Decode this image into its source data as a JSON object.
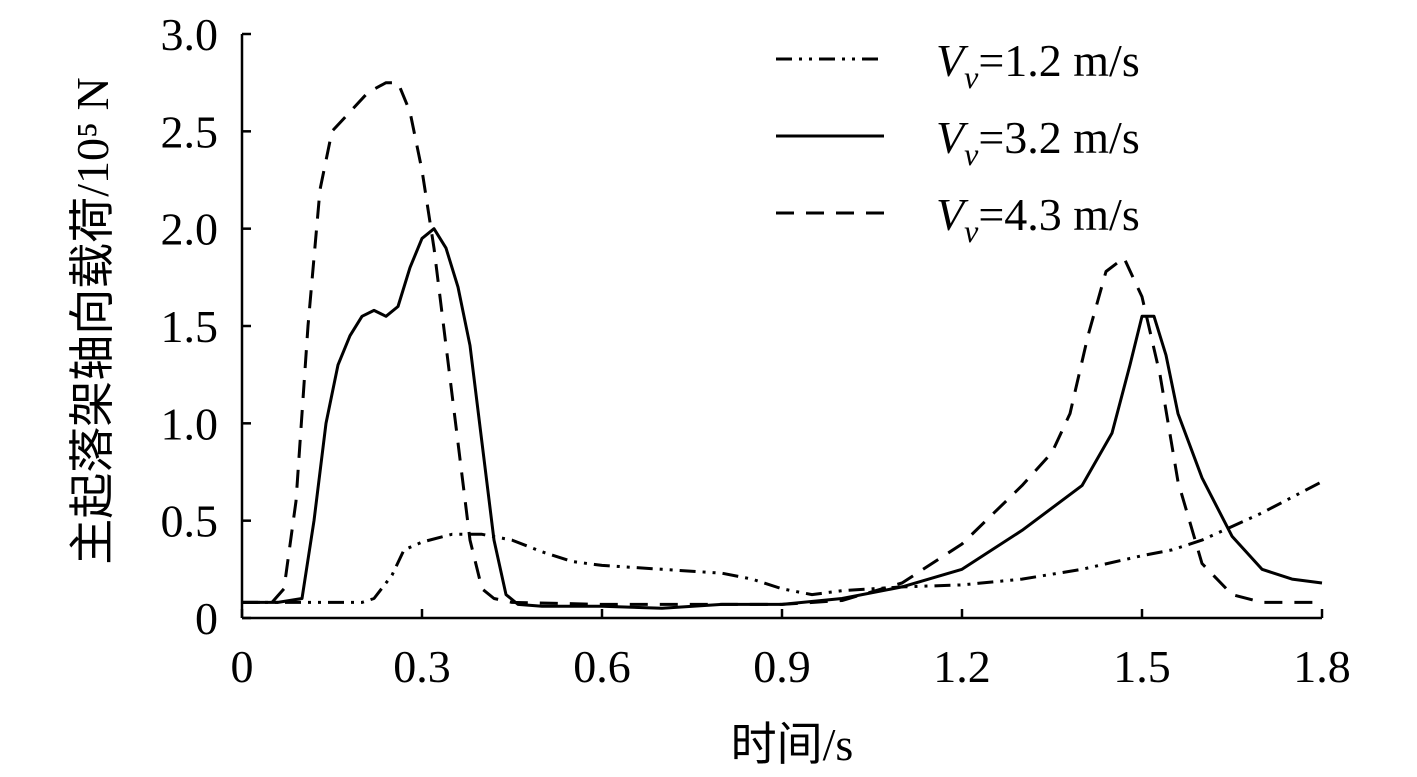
{
  "chart_data": {
    "type": "line",
    "title": "",
    "xlabel": "时间/s",
    "ylabel": "主起落架轴向载荷/10⁵ N",
    "xlim": [
      0,
      1.8
    ],
    "ylim": [
      0,
      3.0
    ],
    "xticks": [
      {
        "value": 0,
        "label": "0"
      },
      {
        "value": 0.3,
        "label": "0.3"
      },
      {
        "value": 0.6,
        "label": "0.6"
      },
      {
        "value": 0.9,
        "label": "0.9"
      },
      {
        "value": 1.2,
        "label": "1.2"
      },
      {
        "value": 1.5,
        "label": "1.5"
      },
      {
        "value": 1.8,
        "label": "1.8"
      }
    ],
    "yticks": [
      {
        "value": 0,
        "label": "0"
      },
      {
        "value": 0.5,
        "label": "0.5"
      },
      {
        "value": 1.0,
        "label": "1.0"
      },
      {
        "value": 1.5,
        "label": "1.5"
      },
      {
        "value": 2.0,
        "label": "2.0"
      },
      {
        "value": 2.5,
        "label": "2.5"
      },
      {
        "value": 3.0,
        "label": "3.0"
      }
    ],
    "grid": false,
    "legend_position": "top-right",
    "series": [
      {
        "name_symbol": "V",
        "name_subscript": "v",
        "name_rest": "=1.2 m/s",
        "style": "dash-dot-dot",
        "color": "#000000",
        "points": [
          [
            0,
            0.08
          ],
          [
            0.1,
            0.08
          ],
          [
            0.2,
            0.08
          ],
          [
            0.22,
            0.1
          ],
          [
            0.25,
            0.22
          ],
          [
            0.27,
            0.35
          ],
          [
            0.3,
            0.39
          ],
          [
            0.35,
            0.43
          ],
          [
            0.4,
            0.43
          ],
          [
            0.45,
            0.4
          ],
          [
            0.5,
            0.34
          ],
          [
            0.55,
            0.29
          ],
          [
            0.6,
            0.27
          ],
          [
            0.7,
            0.25
          ],
          [
            0.8,
            0.23
          ],
          [
            0.85,
            0.2
          ],
          [
            0.9,
            0.15
          ],
          [
            0.95,
            0.12
          ],
          [
            1.0,
            0.14
          ],
          [
            1.1,
            0.16
          ],
          [
            1.2,
            0.17
          ],
          [
            1.3,
            0.2
          ],
          [
            1.4,
            0.25
          ],
          [
            1.5,
            0.32
          ],
          [
            1.55,
            0.35
          ],
          [
            1.6,
            0.4
          ],
          [
            1.7,
            0.54
          ],
          [
            1.8,
            0.7
          ]
        ]
      },
      {
        "name_symbol": "V",
        "name_subscript": "v",
        "name_rest": "=3.2 m/s",
        "style": "solid",
        "color": "#000000",
        "points": [
          [
            0,
            0.08
          ],
          [
            0.06,
            0.08
          ],
          [
            0.1,
            0.1
          ],
          [
            0.12,
            0.5
          ],
          [
            0.14,
            1.0
          ],
          [
            0.16,
            1.3
          ],
          [
            0.18,
            1.45
          ],
          [
            0.2,
            1.55
          ],
          [
            0.22,
            1.58
          ],
          [
            0.24,
            1.55
          ],
          [
            0.26,
            1.6
          ],
          [
            0.28,
            1.8
          ],
          [
            0.3,
            1.95
          ],
          [
            0.32,
            2.0
          ],
          [
            0.34,
            1.9
          ],
          [
            0.36,
            1.7
          ],
          [
            0.38,
            1.4
          ],
          [
            0.4,
            0.9
          ],
          [
            0.42,
            0.4
          ],
          [
            0.44,
            0.12
          ],
          [
            0.46,
            0.07
          ],
          [
            0.5,
            0.06
          ],
          [
            0.6,
            0.06
          ],
          [
            0.7,
            0.05
          ],
          [
            0.8,
            0.07
          ],
          [
            0.9,
            0.07
          ],
          [
            1.0,
            0.1
          ],
          [
            1.1,
            0.16
          ],
          [
            1.2,
            0.25
          ],
          [
            1.3,
            0.45
          ],
          [
            1.4,
            0.68
          ],
          [
            1.45,
            0.95
          ],
          [
            1.48,
            1.3
          ],
          [
            1.5,
            1.55
          ],
          [
            1.52,
            1.55
          ],
          [
            1.54,
            1.35
          ],
          [
            1.56,
            1.05
          ],
          [
            1.6,
            0.72
          ],
          [
            1.65,
            0.42
          ],
          [
            1.7,
            0.25
          ],
          [
            1.75,
            0.2
          ],
          [
            1.8,
            0.18
          ]
        ]
      },
      {
        "name_symbol": "V",
        "name_subscript": "v",
        "name_rest": "=4.3 m/s",
        "style": "dashed",
        "color": "#000000",
        "points": [
          [
            0,
            0.08
          ],
          [
            0.05,
            0.08
          ],
          [
            0.07,
            0.15
          ],
          [
            0.09,
            0.6
          ],
          [
            0.11,
            1.5
          ],
          [
            0.13,
            2.2
          ],
          [
            0.15,
            2.5
          ],
          [
            0.18,
            2.6
          ],
          [
            0.21,
            2.7
          ],
          [
            0.24,
            2.75
          ],
          [
            0.26,
            2.75
          ],
          [
            0.28,
            2.6
          ],
          [
            0.3,
            2.3
          ],
          [
            0.32,
            1.9
          ],
          [
            0.34,
            1.4
          ],
          [
            0.36,
            0.9
          ],
          [
            0.38,
            0.4
          ],
          [
            0.4,
            0.15
          ],
          [
            0.42,
            0.1
          ],
          [
            0.45,
            0.08
          ],
          [
            0.6,
            0.07
          ],
          [
            0.8,
            0.07
          ],
          [
            0.9,
            0.07
          ],
          [
            1.0,
            0.09
          ],
          [
            1.1,
            0.18
          ],
          [
            1.2,
            0.38
          ],
          [
            1.3,
            0.68
          ],
          [
            1.35,
            0.85
          ],
          [
            1.38,
            1.05
          ],
          [
            1.41,
            1.45
          ],
          [
            1.44,
            1.78
          ],
          [
            1.47,
            1.85
          ],
          [
            1.5,
            1.65
          ],
          [
            1.53,
            1.25
          ],
          [
            1.56,
            0.7
          ],
          [
            1.6,
            0.28
          ],
          [
            1.65,
            0.12
          ],
          [
            1.7,
            0.08
          ],
          [
            1.8,
            0.08
          ]
        ]
      }
    ]
  }
}
